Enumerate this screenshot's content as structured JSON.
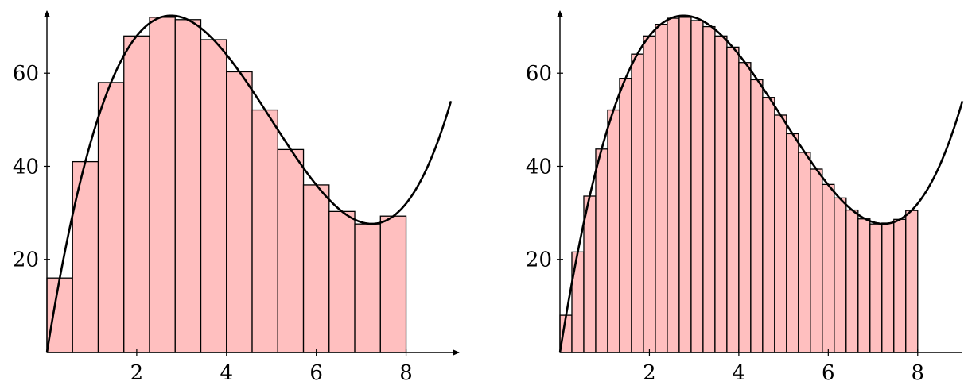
{
  "chart_data": [
    {
      "type": "bar",
      "subtype": "riemann-sum-with-curve",
      "function": "x^3 - 15x^2 + 60x",
      "bar_width": 0.5714,
      "x": [
        0,
        0.5714,
        1.1429,
        1.7143,
        2.2857,
        2.8571,
        3.4286,
        4.0,
        4.5714,
        5.1429,
        5.7143,
        6.2857,
        6.8571,
        7.4286
      ],
      "values": [
        16,
        41,
        58,
        68,
        72,
        71.5,
        67.2,
        60.3,
        52.1,
        43.6,
        36,
        30.3,
        27.6,
        29.3
      ],
      "curve_range": [
        0,
        9
      ],
      "xlim": [
        0,
        9
      ],
      "ylim": [
        0,
        73
      ],
      "xticks": [
        "2",
        "4",
        "6",
        "8"
      ],
      "yticks": [
        "20",
        "40",
        "60"
      ],
      "xtick_values": [
        2,
        4,
        6,
        8
      ],
      "ytick_values": [
        20,
        40,
        60
      ],
      "colors": {
        "bar_fill": "#ffbfbf",
        "bar_stroke": "#000000",
        "curve": "#000000"
      },
      "grid": false
    },
    {
      "type": "bar",
      "subtype": "riemann-sum-with-curve",
      "function": "x^3 - 15x^2 + 60x",
      "bar_width": 0.2667,
      "x": [
        0,
        0.2667,
        0.5333,
        0.8,
        1.0667,
        1.3333,
        1.6,
        1.8667,
        2.1333,
        2.4,
        2.6667,
        2.9333,
        3.2,
        3.4667,
        3.7333,
        4.0,
        4.2667,
        4.5333,
        4.8,
        5.0667,
        5.3333,
        5.6,
        5.8667,
        6.1333,
        6.4,
        6.6667,
        6.9333,
        7.2,
        7.4667,
        7.7333
      ],
      "values": [
        8,
        21.6,
        33.6,
        43.7,
        52.1,
        58.9,
        64.1,
        68.0,
        70.5,
        71.8,
        72.0,
        71.3,
        70.0,
        68.0,
        65.6,
        62.3,
        58.6,
        54.8,
        51.0,
        47.0,
        43.0,
        39.4,
        36.1,
        33.2,
        30.6,
        28.7,
        27.6,
        27.8,
        28.6,
        30.5
      ],
      "curve_range": [
        0,
        9
      ],
      "xlim": [
        0,
        9
      ],
      "ylim": [
        0,
        73
      ],
      "xticks": [
        "2",
        "4",
        "6",
        "8"
      ],
      "yticks": [
        "20",
        "40",
        "60"
      ],
      "xtick_values": [
        2,
        4,
        6,
        8
      ],
      "ytick_values": [
        20,
        40,
        60
      ],
      "colors": {
        "bar_fill": "#ffbfbf",
        "bar_stroke": "#000000",
        "curve": "#000000"
      },
      "grid": false
    }
  ]
}
